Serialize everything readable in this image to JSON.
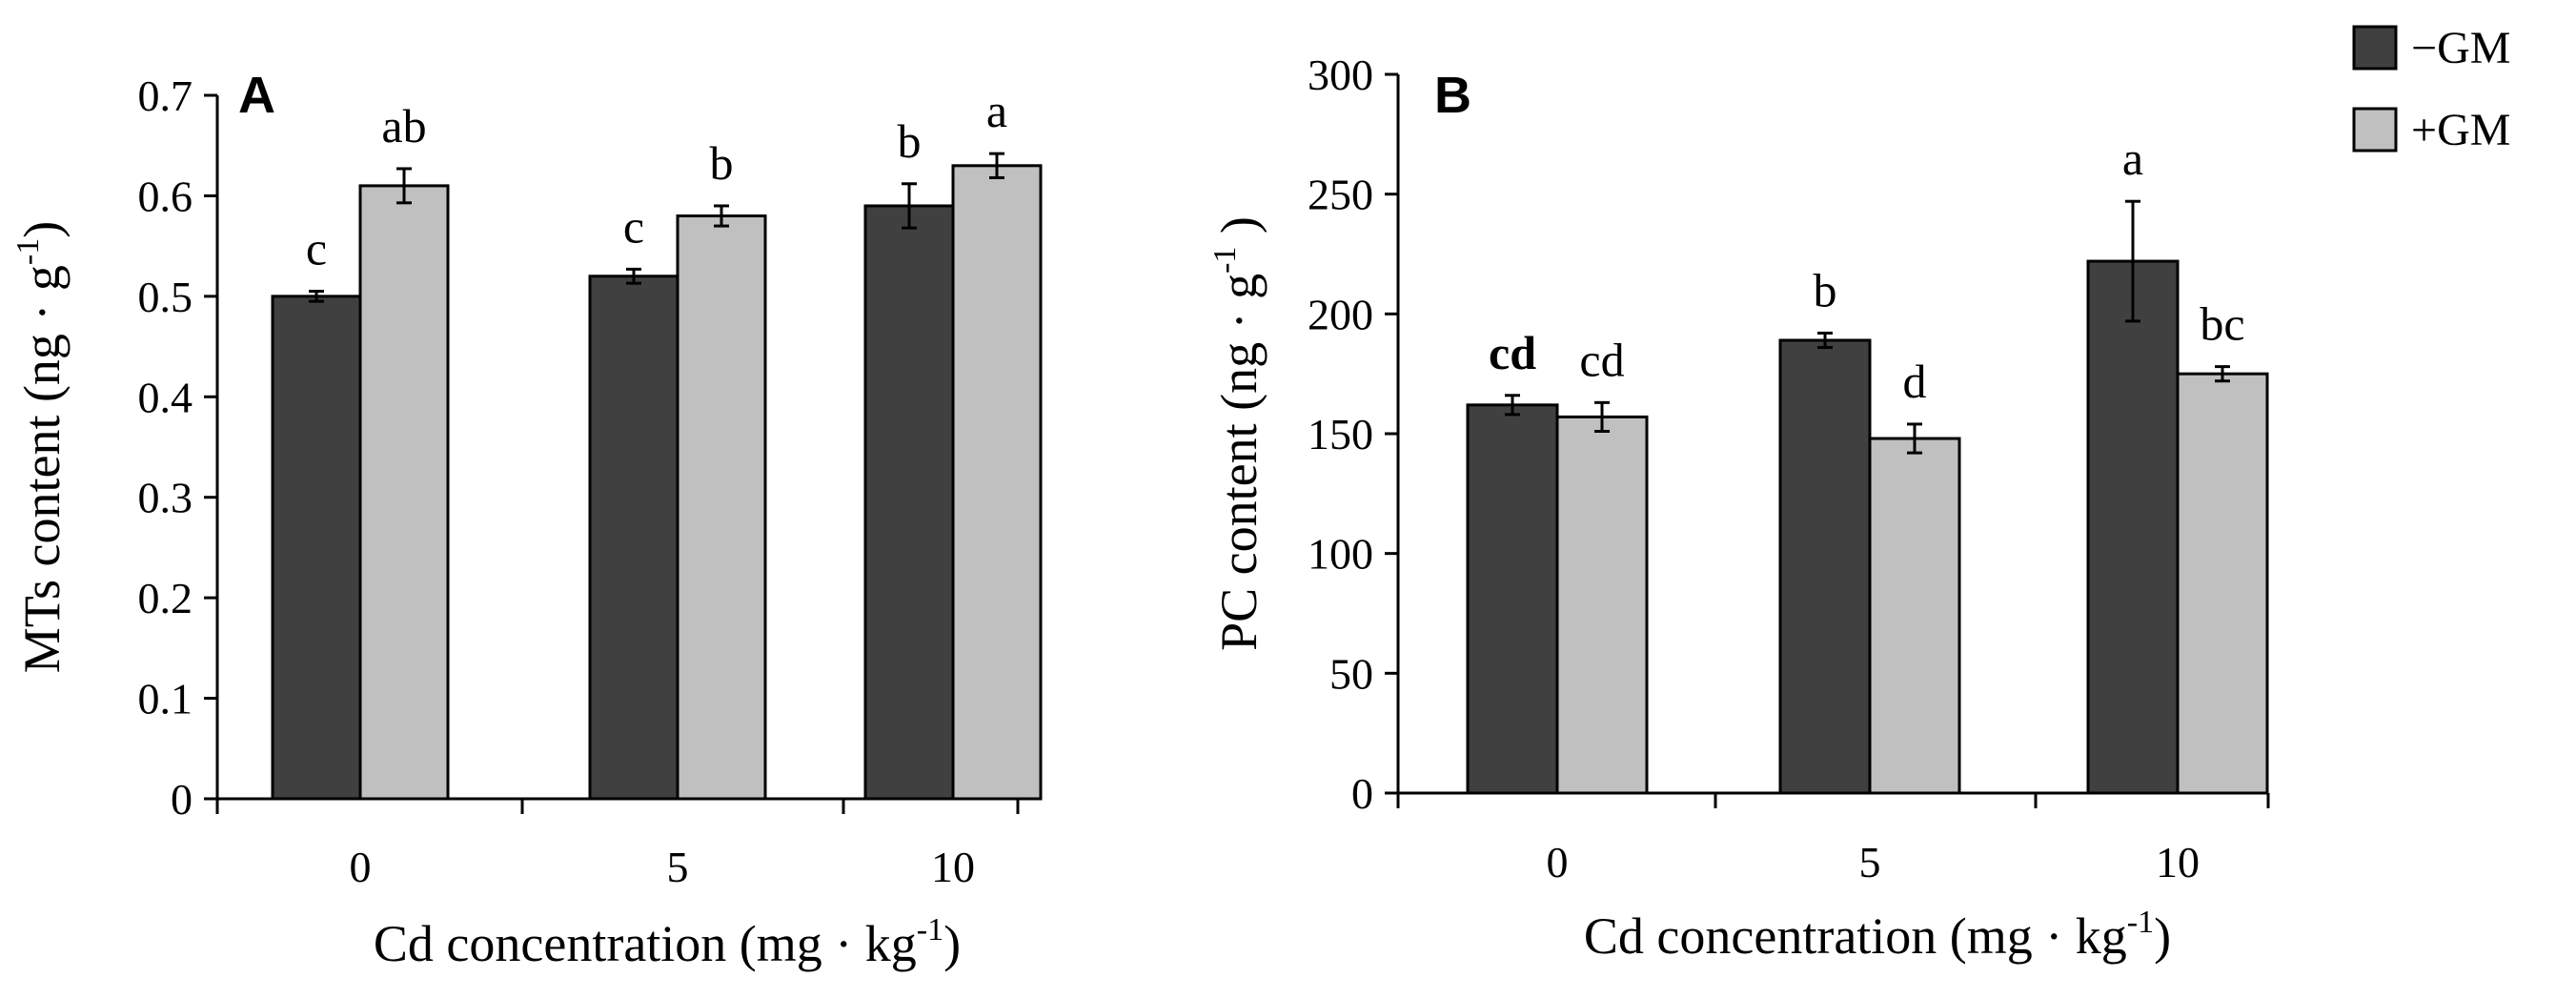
{
  "chart_data": [
    {
      "type": "bar",
      "panel": "A",
      "ylabel_main": "MTs content (ng · g",
      "ylabel_sup": "-1",
      "ylabel_end": ")",
      "xlabel_main": "Cd concentration (mg · kg",
      "xlabel_sup": "-1",
      "xlabel_end": ")",
      "categories": [
        "0",
        "5",
        "10"
      ],
      "ylim": [
        0,
        0.7
      ],
      "ytick_labels": [
        "0",
        "0.1",
        "0.2",
        "0.3",
        "0.4",
        "0.5",
        "0.6",
        "0.7"
      ],
      "ytick_values": [
        0,
        0.1,
        0.2,
        0.3,
        0.4,
        0.5,
        0.6,
        0.7
      ],
      "series": [
        {
          "name": "−GM",
          "values": [
            0.5,
            0.52,
            0.59
          ],
          "errors": [
            0.005,
            0.007,
            0.022
          ],
          "labels": [
            "c",
            "c",
            "b"
          ]
        },
        {
          "name": "+GM",
          "values": [
            0.61,
            0.58,
            0.63
          ],
          "errors": [
            0.017,
            0.01,
            0.012
          ],
          "labels": [
            "ab",
            "b",
            "a"
          ]
        }
      ]
    },
    {
      "type": "bar",
      "panel": "B",
      "ylabel_main": "PC content (ng · g",
      "ylabel_sup": "-1",
      "ylabel_end": " )",
      "xlabel_main": "Cd concentration (mg · kg",
      "xlabel_sup": "-1",
      "xlabel_end": ")",
      "categories": [
        "0",
        "5",
        "10"
      ],
      "ylim": [
        0,
        300
      ],
      "ytick_labels": [
        "0",
        "50",
        "100",
        "150",
        "200",
        "250",
        "300"
      ],
      "ytick_values": [
        0,
        50,
        100,
        150,
        200,
        250,
        300
      ],
      "series": [
        {
          "name": "−GM",
          "values": [
            162,
            189,
            222
          ],
          "errors": [
            4,
            3,
            25
          ],
          "labels": [
            "cd",
            "b",
            "a"
          ]
        },
        {
          "name": "+GM",
          "values": [
            157,
            148,
            175
          ],
          "errors": [
            6,
            6,
            3
          ],
          "labels": [
            "cd",
            "d",
            "bc"
          ]
        }
      ]
    }
  ],
  "legend": [
    {
      "name": "−GM",
      "color": "#404040"
    },
    {
      "name": "+GM",
      "color": "#c0c0c0"
    }
  ],
  "colors": {
    "minus_gm": "#404040",
    "plus_gm": "#c0c0c0"
  }
}
